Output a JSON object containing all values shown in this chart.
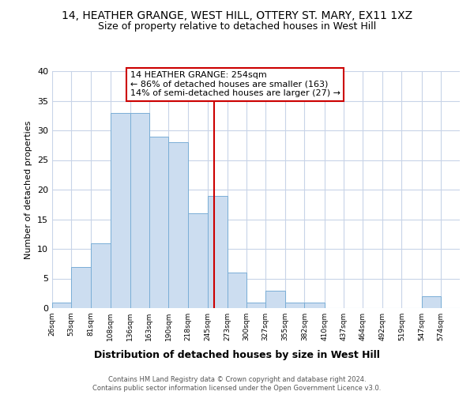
{
  "title": "14, HEATHER GRANGE, WEST HILL, OTTERY ST. MARY, EX11 1XZ",
  "subtitle": "Size of property relative to detached houses in West Hill",
  "xlabel": "Distribution of detached houses by size in West Hill",
  "ylabel": "Number of detached properties",
  "bar_edges": [
    26,
    53,
    81,
    108,
    136,
    163,
    190,
    218,
    245,
    273,
    300,
    327,
    355,
    382,
    410,
    437,
    464,
    492,
    519,
    547,
    574
  ],
  "bar_heights": [
    1,
    7,
    11,
    33,
    33,
    29,
    28,
    16,
    19,
    6,
    1,
    3,
    1,
    1,
    0,
    0,
    0,
    0,
    0,
    2
  ],
  "bar_color": "#ccddf0",
  "bar_edge_color": "#7aaed6",
  "vline_x": 254,
  "vline_color": "#cc0000",
  "annotation_lines": [
    "14 HEATHER GRANGE: 254sqm",
    "← 86% of detached houses are smaller (163)",
    "14% of semi-detached houses are larger (27) →"
  ],
  "annotation_box_color": "#cc0000",
  "annotation_fill_color": "#ffffff",
  "ylim": [
    0,
    40
  ],
  "yticks": [
    0,
    5,
    10,
    15,
    20,
    25,
    30,
    35,
    40
  ],
  "footer_line1": "Contains HM Land Registry data © Crown copyright and database right 2024.",
  "footer_line2": "Contains public sector information licensed under the Open Government Licence v3.0.",
  "background_color": "#ffffff",
  "grid_color": "#c8d4e8"
}
